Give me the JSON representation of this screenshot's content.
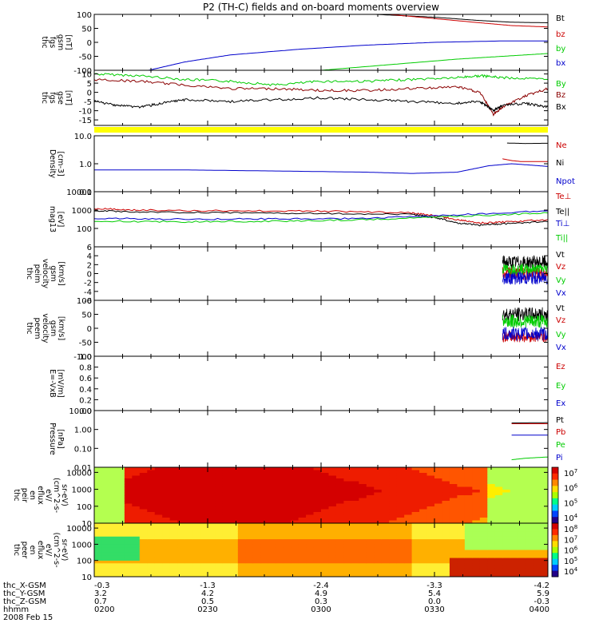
{
  "title": "P2 (TH-C) fields and on-board moments overview",
  "colors": {
    "black": "#000000",
    "red": "#cc0000",
    "darkred": "#8b0000",
    "green": "#00cc00",
    "blue": "#0000cc",
    "yellow": "#ffff00"
  },
  "chart_data": [
    {
      "type": "line",
      "ylabel": [
        "thc",
        "fgs",
        "gsm",
        "[nT]"
      ],
      "ylim": [
        -100,
        100
      ],
      "yticks": [
        "100",
        "50",
        "0",
        "-50",
        "-100"
      ],
      "legend": [
        {
          "name": "Bt",
          "color": "black"
        },
        {
          "name": "bz",
          "color": "red"
        },
        {
          "name": "by",
          "color": "green"
        },
        {
          "name": "bx",
          "color": "blue"
        }
      ],
      "series": [
        {
          "name": "Bt",
          "color": "black",
          "x": [
            0.62,
            0.75,
            0.85,
            0.92,
            1.0
          ],
          "values": [
            100,
            90,
            78,
            72,
            70
          ]
        },
        {
          "name": "bz",
          "color": "red",
          "x": [
            0.65,
            0.75,
            0.85,
            0.92,
            1.0
          ],
          "values": [
            100,
            85,
            70,
            60,
            55
          ]
        },
        {
          "name": "by",
          "color": "green",
          "x": [
            0.5,
            0.65,
            0.8,
            0.9,
            1.0
          ],
          "values": [
            -100,
            -80,
            -60,
            -50,
            -40
          ]
        },
        {
          "name": "bx",
          "color": "blue",
          "x": [
            0.12,
            0.2,
            0.3,
            0.45,
            0.6,
            0.75,
            0.9,
            1.0
          ],
          "values": [
            -100,
            -70,
            -45,
            -25,
            -10,
            0,
            5,
            5
          ]
        }
      ]
    },
    {
      "type": "line",
      "ylabel": [
        "thc",
        "fgs",
        "gse",
        "[nT]"
      ],
      "ylim": [
        -18,
        12
      ],
      "yticks": [
        "10",
        "5",
        "0",
        "-5",
        "-10",
        "-15"
      ],
      "legend": [
        {
          "name": "By",
          "color": "green"
        },
        {
          "name": "Bz",
          "color": "darkred"
        },
        {
          "name": "Bx",
          "color": "black"
        }
      ],
      "series": [
        {
          "name": "By",
          "color": "green",
          "x": [
            0,
            0.1,
            0.2,
            0.3,
            0.4,
            0.5,
            0.6,
            0.7,
            0.8,
            0.85,
            0.9,
            1.0
          ],
          "values": [
            10,
            9,
            7,
            6,
            4,
            6,
            6,
            7,
            8,
            9,
            8,
            7
          ]
        },
        {
          "name": "Bz",
          "color": "darkred",
          "x": [
            0,
            0.1,
            0.2,
            0.3,
            0.4,
            0.5,
            0.6,
            0.7,
            0.8,
            0.85,
            0.88,
            0.9,
            0.95,
            1.0
          ],
          "values": [
            7,
            6,
            4,
            2,
            2,
            1,
            1,
            2,
            3,
            0,
            -12,
            -8,
            -2,
            2
          ]
        },
        {
          "name": "Bx",
          "color": "black",
          "x": [
            0,
            0.05,
            0.1,
            0.15,
            0.2,
            0.3,
            0.4,
            0.5,
            0.6,
            0.7,
            0.8,
            0.85,
            0.88,
            0.9,
            0.95,
            1.0
          ],
          "values": [
            -5,
            -7,
            -8,
            -6,
            -4,
            -5,
            -4,
            -3,
            -4,
            -5,
            -6,
            -5,
            -10,
            -7,
            -6,
            -8
          ]
        }
      ]
    },
    {
      "type": "line",
      "ylabel": [
        "Density",
        "[cm-3]"
      ],
      "ylim": [
        0.1,
        10
      ],
      "yscale": "log",
      "yticks": [
        "10.0",
        "1.0",
        "0.1"
      ],
      "legend": [
        {
          "name": "Ne",
          "color": "red"
        },
        {
          "name": "Ni",
          "color": "black"
        },
        {
          "name": "Npot",
          "color": "blue"
        }
      ],
      "series": [
        {
          "name": "Ne",
          "color": "red",
          "x": [
            0.9,
            0.92,
            0.94,
            1.0
          ],
          "values": [
            1.5,
            1.3,
            1.2,
            1.2
          ]
        },
        {
          "name": "Ni",
          "color": "black",
          "x": [
            0.91,
            0.95,
            1.0
          ],
          "values": [
            5.5,
            5.3,
            5.4
          ]
        },
        {
          "name": "Npot",
          "color": "blue",
          "x": [
            0,
            0.2,
            0.4,
            0.6,
            0.7,
            0.8,
            0.87,
            0.92,
            0.96,
            1.0
          ],
          "values": [
            0.6,
            0.6,
            0.55,
            0.5,
            0.45,
            0.5,
            0.85,
            1.0,
            0.9,
            0.8
          ]
        }
      ]
    },
    {
      "type": "line",
      "ylabel": [
        "mag13",
        "[eV]"
      ],
      "ylim": [
        10,
        10000
      ],
      "yscale": "log",
      "yticks": [
        "10000",
        "1000",
        "100"
      ],
      "legend": [
        {
          "name": "Te⊥",
          "color": "red"
        },
        {
          "name": "Te||",
          "color": "black"
        },
        {
          "name": "Ti⊥",
          "color": "blue"
        },
        {
          "name": "Ti||",
          "color": "green"
        }
      ],
      "series": [
        {
          "name": "Te⊥",
          "color": "red",
          "x": [
            0,
            0.1,
            0.3,
            0.5,
            0.7,
            0.75,
            0.8,
            0.85,
            0.9,
            1.0
          ],
          "values": [
            1200,
            1000,
            900,
            900,
            700,
            500,
            300,
            200,
            220,
            300
          ]
        },
        {
          "name": "Te||",
          "color": "black",
          "x": [
            0,
            0.1,
            0.3,
            0.5,
            0.7,
            0.75,
            0.8,
            0.85,
            0.9,
            1.0
          ],
          "values": [
            900,
            800,
            700,
            650,
            600,
            400,
            200,
            150,
            180,
            230
          ]
        },
        {
          "name": "Ti⊥",
          "color": "blue",
          "x": [
            0,
            0.2,
            0.4,
            0.6,
            0.8,
            1.0
          ],
          "values": [
            350,
            320,
            330,
            350,
            550,
            900
          ]
        },
        {
          "name": "Ti||",
          "color": "green",
          "x": [
            0,
            0.2,
            0.4,
            0.6,
            0.8,
            1.0
          ],
          "values": [
            250,
            230,
            250,
            300,
            450,
            700
          ]
        }
      ]
    },
    {
      "type": "line",
      "ylabel": [
        "thc",
        "peim",
        "velocity",
        "gsm",
        "[km/s]"
      ],
      "ylim": [
        -6,
        6
      ],
      "yticks": [
        "6",
        "4",
        "2",
        "0",
        "-2",
        "-4",
        "-6"
      ],
      "legend": [
        {
          "name": "Vt",
          "color": "black"
        },
        {
          "name": "Vz",
          "color": "red"
        },
        {
          "name": "Vy",
          "color": "green"
        },
        {
          "name": "Vx",
          "color": "blue"
        }
      ],
      "burst_start": 0.9,
      "series": [
        {
          "name": "Vt",
          "color": "black",
          "center": 2.5,
          "spread": 1.5
        },
        {
          "name": "Vz",
          "color": "red",
          "center": 0,
          "spread": 1.5
        },
        {
          "name": "Vy",
          "color": "green",
          "center": 1,
          "spread": 1.2
        },
        {
          "name": "Vx",
          "color": "blue",
          "center": -1,
          "spread": 1.5
        }
      ]
    },
    {
      "type": "line",
      "ylabel": [
        "thc",
        "peem",
        "velocity",
        "gsm",
        "[km/s]"
      ],
      "ylim": [
        -100,
        100
      ],
      "yticks": [
        "100",
        "50",
        "0",
        "-50",
        "-100"
      ],
      "legend": [
        {
          "name": "Vt",
          "color": "black"
        },
        {
          "name": "Vz",
          "color": "red"
        },
        {
          "name": "Vy",
          "color": "green"
        },
        {
          "name": "Vx",
          "color": "blue"
        }
      ],
      "burst_start": 0.9,
      "series": [
        {
          "name": "Vt",
          "color": "black",
          "center": 50,
          "spread": 25
        },
        {
          "name": "Vz",
          "color": "red",
          "center": -30,
          "spread": 20
        },
        {
          "name": "Vy",
          "color": "green",
          "center": 25,
          "spread": 25
        },
        {
          "name": "Vx",
          "color": "blue",
          "center": -20,
          "spread": 25
        }
      ]
    },
    {
      "type": "line",
      "ylabel": [
        "E=-VxB",
        "[mV/m]"
      ],
      "ylim": [
        0,
        1
      ],
      "yticks": [
        "1.0",
        "0.8",
        "0.6",
        "0.4",
        "0.2",
        "0.0"
      ],
      "legend": [
        {
          "name": "Ez",
          "color": "red"
        },
        {
          "name": "Ey",
          "color": "green"
        },
        {
          "name": "Ex",
          "color": "blue"
        }
      ],
      "series": []
    },
    {
      "type": "line",
      "ylabel": [
        "Pressure",
        "[nPa]"
      ],
      "ylim": [
        0.01,
        10
      ],
      "yscale": "log",
      "yticks": [
        "10.00",
        "1.00",
        "0.10",
        "0.01"
      ],
      "legend": [
        {
          "name": "Pt",
          "color": "black"
        },
        {
          "name": "Pb",
          "color": "red"
        },
        {
          "name": "Pe",
          "color": "green"
        },
        {
          "name": "Pi",
          "color": "blue"
        }
      ],
      "series": [
        {
          "name": "Pt",
          "color": "black",
          "x": [
            0.92,
            1.0
          ],
          "values": [
            2.2,
            2.3
          ]
        },
        {
          "name": "Pb",
          "color": "red",
          "x": [
            0.92,
            1.0
          ],
          "values": [
            2.0,
            2.0
          ]
        },
        {
          "name": "Pi",
          "color": "blue",
          "x": [
            0.92,
            1.0
          ],
          "values": [
            0.5,
            0.5
          ]
        },
        {
          "name": "Pe",
          "color": "green",
          "x": [
            0.92,
            0.95,
            1.0
          ],
          "values": [
            0.025,
            0.03,
            0.035
          ]
        }
      ]
    },
    {
      "type": "heatmap",
      "ylabel": [
        "thc",
        "peir",
        "en",
        "eflux",
        "eV/",
        "(cm^2-s-",
        "sr-eV)"
      ],
      "yscale": "log",
      "ylim": [
        10,
        20000
      ],
      "yticks": [
        "10000",
        "1000",
        "100",
        "10"
      ],
      "colorbar_ticks": [
        "10^7",
        "10^6",
        "10^5",
        "10^4"
      ]
    },
    {
      "type": "heatmap",
      "ylabel": [
        "thc",
        "peer",
        "en",
        "eflux",
        "eV/",
        "(cm^2-s-",
        "sr-eV)"
      ],
      "yscale": "log",
      "ylim": [
        10,
        20000
      ],
      "yticks": [
        "10000",
        "1000",
        "100",
        "10"
      ],
      "colorbar_ticks": [
        "10^8",
        "10^7",
        "10^6",
        "10^5",
        "10^4"
      ]
    }
  ],
  "x_axis": {
    "time_labels": [
      "0200",
      "0230",
      "0300",
      "0330",
      "0400"
    ],
    "rows": [
      {
        "name": "thc_X-GSM",
        "values": [
          "-0.3",
          "-1.3",
          "-2.4",
          "-3.3",
          "-4.2"
        ]
      },
      {
        "name": "thc_Y-GSM",
        "values": [
          "3.2",
          "4.2",
          "4.9",
          "5.4",
          "5.9"
        ]
      },
      {
        "name": "thc_Z-GSM",
        "values": [
          "0.7",
          "0.5",
          "0.3",
          "0.0",
          "-0.3"
        ]
      },
      {
        "name": "hhmm",
        "values": [
          "0200",
          "0230",
          "0300",
          "0330",
          "0400"
        ]
      }
    ],
    "date": "2008 Feb 15"
  }
}
